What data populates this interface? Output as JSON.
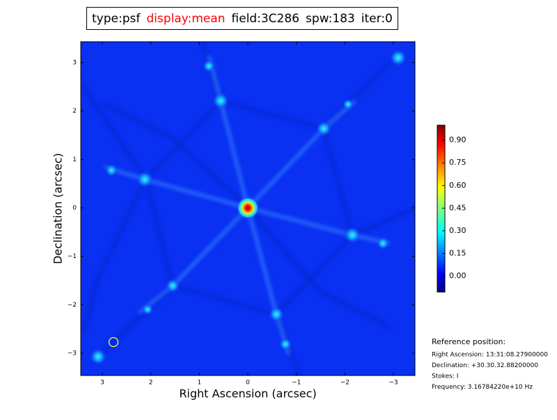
{
  "chart_data": {
    "type": "image",
    "title_parts": [
      {
        "text": "type:psf",
        "color": "#000000"
      },
      {
        "text": "display:mean",
        "color": "#ff0000"
      },
      {
        "text": "field:3C286",
        "color": "#000000"
      },
      {
        "text": "spw:183",
        "color": "#000000"
      },
      {
        "text": "iter:0",
        "color": "#000000"
      }
    ],
    "xlabel": "Right Ascension (arcsec)",
    "ylabel": "Declination (arcsec)",
    "xlim": [
      3.445,
      -3.445
    ],
    "ylim": [
      -3.46,
      3.43
    ],
    "xticks": [
      3,
      2,
      1,
      0,
      {
        "value": -1,
        "label": "−1"
      },
      {
        "value": -2,
        "label": "−2"
      },
      {
        "value": -3,
        "label": "−3"
      }
    ],
    "yticks": [
      {
        "value": -3,
        "label": "−3"
      },
      {
        "value": -2,
        "label": "−2"
      },
      {
        "value": -1,
        "label": "−1"
      },
      0,
      1,
      2,
      3
    ],
    "clim": [
      -0.106,
      1.0
    ],
    "cticks": [
      {
        "value": 0,
        "label": "0.00"
      },
      {
        "value": 0.15,
        "label": "0.15"
      },
      {
        "value": 0.3,
        "label": "0.30"
      },
      {
        "value": 0.45,
        "label": "0.45"
      },
      {
        "value": 0.6,
        "label": "0.60"
      },
      {
        "value": 0.75,
        "label": "0.75"
      },
      {
        "value": 0.9,
        "label": "0.90"
      }
    ],
    "reference": {
      "heading": "Reference position:",
      "lines": [
        "Right Ascension: 13:31:08.27900000",
        "Declination: +30.30.32.88200000",
        "Stokes: I",
        "Frequency: 3.16784220e+10 Hz"
      ]
    }
  }
}
